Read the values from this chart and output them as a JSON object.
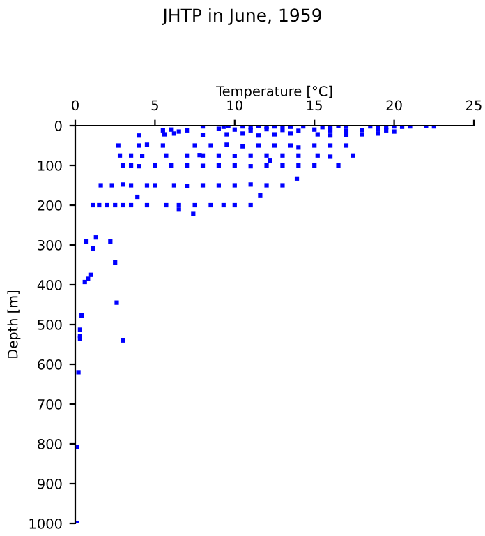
{
  "chart_data": {
    "type": "scatter",
    "title": "JHTP in June, 1959",
    "xlabel": "Temperature [°C]",
    "ylabel": "Depth [m]",
    "x": [
      8,
      9.3,
      9.6,
      10.5,
      11,
      11.5,
      12,
      12.5,
      13,
      13.5,
      14.3,
      15.5,
      16,
      16.5,
      17,
      18.5,
      19,
      19.5,
      20,
      20.5,
      21,
      22,
      22.5,
      5.5,
      6,
      6.5,
      7,
      9,
      10,
      11,
      12,
      13,
      14,
      15,
      16,
      17,
      18,
      19,
      19.5,
      20,
      4,
      5.6,
      6.2,
      8,
      9.5,
      10.5,
      11.5,
      12.5,
      13.5,
      15.2,
      16,
      17,
      18,
      19,
      2.7,
      4,
      4.5,
      5.5,
      7.5,
      8.5,
      9.5,
      10.5,
      11.5,
      12.5,
      13.5,
      14,
      15,
      16,
      17,
      2.8,
      3.5,
      4.2,
      5.7,
      7,
      7.8,
      8,
      9,
      10,
      11,
      12,
      13,
      14,
      15.2,
      16,
      17.4,
      3,
      3.5,
      4,
      5,
      6,
      7,
      8,
      9,
      10,
      11,
      12,
      13,
      14,
      15,
      16.5,
      1.6,
      2.3,
      3,
      3.5,
      4.5,
      5,
      6.2,
      7,
      8,
      9,
      10,
      11,
      12,
      13,
      1.1,
      1.5,
      2,
      2.5,
      3,
      3.5,
      4.5,
      5.7,
      6.5,
      7.5,
      8.5,
      9.3,
      10,
      11,
      13.9,
      3.9,
      11.6,
      6.5,
      7.4,
      12.2,
      0.7,
      1.3,
      1.1,
      2.2,
      2.5,
      1,
      0.6,
      0.8,
      2.6,
      0.4,
      3,
      0.3,
      0.3,
      0.3,
      0.2,
      0.1,
      0.1
    ],
    "values": [
      2,
      3,
      1,
      2,
      4,
      1,
      3,
      2,
      1,
      3,
      2,
      4,
      2,
      1,
      3,
      2,
      1,
      4,
      2,
      3,
      2,
      1,
      2,
      12,
      10,
      15,
      12,
      8,
      10,
      12,
      9,
      11,
      13,
      10,
      12,
      14,
      11,
      10,
      12,
      15,
      25,
      22,
      20,
      24,
      22,
      20,
      25,
      22,
      20,
      22,
      25,
      24,
      22,
      20,
      50,
      50,
      48,
      50,
      50,
      50,
      48,
      52,
      50,
      50,
      50,
      55,
      50,
      50,
      50,
      75,
      75,
      76,
      75,
      75,
      74,
      75,
      75,
      76,
      75,
      75,
      75,
      75,
      75,
      78,
      75,
      100,
      100,
      102,
      100,
      100,
      100,
      101,
      100,
      100,
      102,
      100,
      100,
      100,
      100,
      100,
      150,
      150,
      148,
      150,
      150,
      150,
      150,
      152,
      150,
      150,
      150,
      148,
      150,
      150,
      200,
      200,
      200,
      200,
      200,
      200,
      200,
      200,
      200,
      200,
      200,
      200,
      200,
      200,
      133,
      179,
      175,
      211,
      222,
      88,
      291,
      281,
      309,
      291,
      344,
      375,
      393,
      385,
      445,
      477,
      540,
      513,
      530,
      535,
      620,
      808,
      1000
    ],
    "color": "#0000ff",
    "marker": "square",
    "xlim": [
      0,
      25
    ],
    "xticks": [
      0,
      5,
      10,
      15,
      20,
      25
    ],
    "ylim": [
      1000,
      0
    ],
    "yticks": [
      0,
      100,
      200,
      300,
      400,
      500,
      600,
      700,
      800,
      900,
      1000
    ],
    "grid": false,
    "legend": false
  }
}
